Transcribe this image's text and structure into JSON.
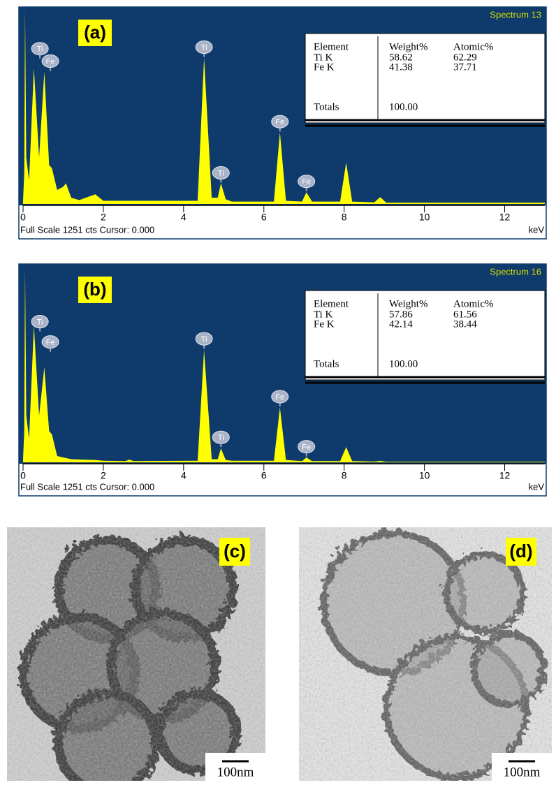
{
  "chart_data": [
    {
      "type": "spectrum",
      "panel_label": "(a)",
      "title": "Spectrum 13",
      "footer": "Full Scale 1251 cts Cursor: 0.000",
      "x_unit": "keV",
      "xlim": [
        0,
        13
      ],
      "ylim": [
        0,
        1251
      ],
      "xticks": [
        0,
        2,
        4,
        6,
        8,
        10,
        12
      ],
      "color": "#ffff00",
      "x": [
        0,
        0.03,
        0.05,
        0.08,
        0.15,
        0.27,
        0.4,
        0.53,
        0.65,
        0.72,
        0.85,
        1.0,
        1.07,
        1.2,
        1.4,
        1.8,
        2.0,
        4.35,
        4.51,
        4.7,
        4.85,
        4.93,
        5.05,
        5.2,
        6.25,
        6.4,
        6.55,
        6.95,
        7.06,
        7.2,
        7.9,
        8.05,
        8.2,
        8.75,
        8.9,
        9.05,
        13
      ],
      "values": [
        20,
        200,
        1251,
        300,
        150,
        875,
        300,
        852,
        250,
        230,
        90,
        110,
        133,
        40,
        25,
        62,
        20,
        20,
        941,
        40,
        40,
        133,
        30,
        15,
        15,
        462,
        20,
        15,
        75,
        15,
        15,
        266,
        15,
        10,
        44,
        8,
        8
      ],
      "annotations": [
        {
          "text": "Ti",
          "x": 0.42,
          "y": 1000
        },
        {
          "text": "Fe",
          "x": 0.68,
          "y": 920
        },
        {
          "text": "Ti",
          "x": 4.51,
          "y": 1010
        },
        {
          "text": "Ti",
          "x": 4.93,
          "y": 200
        },
        {
          "text": "Fe",
          "x": 6.4,
          "y": 530
        },
        {
          "text": "Fe",
          "x": 7.06,
          "y": 145
        }
      ],
      "table": {
        "header": [
          "Element",
          "Weight%",
          "Atomic%"
        ],
        "rows": [
          [
            "Ti K",
            "58.62",
            "62.29"
          ],
          [
            "Fe K",
            "41.38",
            "37.71"
          ]
        ],
        "totals": [
          "Totals",
          "100.00"
        ]
      }
    },
    {
      "type": "spectrum",
      "panel_label": "(b)",
      "title": "Spectrum 16",
      "footer": "Full Scale 1251 cts Cursor: 0.000",
      "x_unit": "keV",
      "xlim": [
        0,
        13
      ],
      "ylim": [
        0,
        1251
      ],
      "xticks": [
        0,
        2,
        4,
        6,
        8,
        10,
        12
      ],
      "color": "#ffff00",
      "x": [
        0,
        0.03,
        0.05,
        0.08,
        0.15,
        0.27,
        0.4,
        0.53,
        0.65,
        0.72,
        0.85,
        1.2,
        1.8,
        2.0,
        2.55,
        2.65,
        2.75,
        4.35,
        4.51,
        4.7,
        4.85,
        4.93,
        5.05,
        5.2,
        6.25,
        6.4,
        6.55,
        6.95,
        7.06,
        7.2,
        7.9,
        8.05,
        8.2,
        8.75,
        8.9,
        9.05,
        13
      ],
      "values": [
        20,
        200,
        1251,
        300,
        150,
        875,
        300,
        608,
        200,
        178,
        40,
        20,
        15,
        10,
        8,
        18,
        8,
        10,
        719,
        20,
        20,
        89,
        15,
        10,
        10,
        351,
        15,
        8,
        31,
        8,
        8,
        98,
        8,
        5,
        9,
        4,
        4
      ],
      "annotations": [
        {
          "text": "Ti",
          "x": 0.42,
          "y": 900
        },
        {
          "text": "Fe",
          "x": 0.68,
          "y": 770
        },
        {
          "text": "Ti",
          "x": 4.51,
          "y": 790
        },
        {
          "text": "Ti",
          "x": 4.93,
          "y": 160
        },
        {
          "text": "Fe",
          "x": 6.4,
          "y": 420
        },
        {
          "text": "Fe",
          "x": 7.06,
          "y": 100
        }
      ],
      "table": {
        "header": [
          "Element",
          "Weight%",
          "Atomic%"
        ],
        "rows": [
          [
            "Ti K",
            "57.86",
            "61.56"
          ],
          [
            "Fe K",
            "42.14",
            "38.44"
          ]
        ],
        "totals": [
          "Totals",
          "100.00"
        ]
      }
    }
  ],
  "panels": [
    {
      "label": "(c)",
      "scale_bar": "100nm"
    },
    {
      "label": "(d)",
      "scale_bar": "100nm"
    }
  ]
}
